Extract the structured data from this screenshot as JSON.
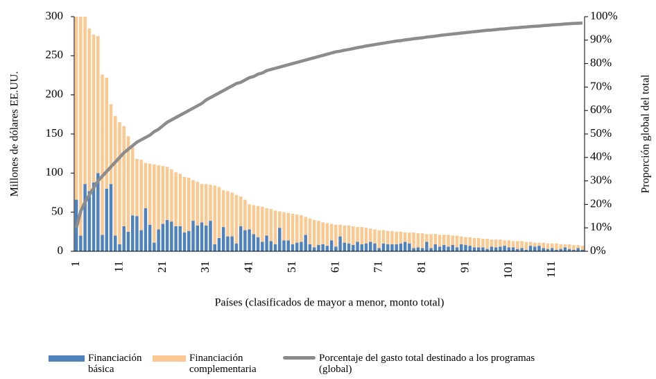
{
  "chart_data": {
    "type": "bar",
    "stacked": true,
    "x_label": "Países (clasificados de mayor a menor, monto total)",
    "y_label": "Millones de dólares EE.UU.",
    "y2_label": "Proporción global del total",
    "categories": [
      "1",
      null,
      null,
      null,
      null,
      null,
      null,
      null,
      null,
      null,
      "11",
      null,
      null,
      null,
      null,
      null,
      null,
      null,
      null,
      null,
      "21",
      null,
      null,
      null,
      null,
      null,
      null,
      null,
      null,
      null,
      "31",
      null,
      null,
      null,
      null,
      null,
      null,
      null,
      null,
      null,
      "41",
      null,
      null,
      null,
      null,
      null,
      null,
      null,
      null,
      null,
      "51",
      null,
      null,
      null,
      null,
      null,
      null,
      null,
      null,
      null,
      "61",
      null,
      null,
      null,
      null,
      null,
      null,
      null,
      null,
      null,
      "71",
      null,
      null,
      null,
      null,
      null,
      null,
      null,
      null,
      null,
      "81",
      null,
      null,
      null,
      null,
      null,
      null,
      null,
      null,
      null,
      "91",
      null,
      null,
      null,
      null,
      null,
      null,
      null,
      null,
      null,
      "101",
      null,
      null,
      null,
      null,
      null,
      null,
      null,
      null,
      null,
      "111",
      null,
      null,
      null,
      null,
      null,
      null,
      null
    ],
    "series": [
      {
        "name": "Financiación básica",
        "color": "#4f81bd",
        "values": [
          66,
          20,
          86,
          77,
          88,
          100,
          21,
          80,
          86,
          20,
          9,
          32,
          25,
          46,
          45,
          27,
          55,
          34,
          11,
          28,
          35,
          40,
          38,
          32,
          32,
          24,
          26,
          39,
          33,
          37,
          33,
          39,
          9,
          17,
          31,
          19,
          19,
          10,
          32,
          27,
          28,
          22,
          18,
          12,
          20,
          13,
          9,
          30,
          14,
          14,
          9,
          11,
          12,
          21,
          9,
          5,
          8,
          9,
          7,
          14,
          6,
          19,
          11,
          10,
          8,
          12,
          9,
          10,
          12,
          10,
          4,
          10,
          9,
          9,
          9,
          10,
          12,
          10,
          4,
          5,
          4,
          12,
          4,
          9,
          6,
          8,
          6,
          8,
          5,
          9,
          8,
          7,
          5,
          5,
          5,
          3,
          6,
          5,
          6,
          7,
          5,
          5,
          3,
          4,
          2,
          7,
          6,
          7,
          4,
          3,
          4,
          2,
          3,
          5,
          3,
          2,
          4,
          2
        ]
      },
      {
        "name": "Financiación complementaria",
        "color": "#fac891",
        "values": [
          254,
          310,
          224,
          208,
          189,
          175,
          205,
          142,
          102,
          153,
          156,
          128,
          122,
          87,
          73,
          90,
          58,
          78,
          100,
          82,
          74,
          68,
          67,
          69,
          67,
          71,
          68,
          52,
          56,
          49,
          53,
          46,
          75,
          65,
          47,
          58,
          56,
          62,
          38,
          39,
          32,
          37,
          40,
          45,
          35,
          41,
          43,
          21,
          36,
          35,
          39,
          36,
          34,
          23,
          33,
          35,
          31,
          28,
          29,
          21,
          28,
          15,
          22,
          23,
          24,
          19,
          22,
          20,
          17,
          18,
          23,
          17,
          17,
          17,
          16,
          15,
          12,
          14,
          20,
          18,
          19,
          10,
          18,
          13,
          15,
          13,
          15,
          12,
          15,
          10,
          10,
          11,
          12,
          12,
          11,
          13,
          9,
          10,
          9,
          7,
          9,
          8,
          10,
          9,
          10,
          5,
          5,
          4,
          7,
          7,
          6,
          8,
          6,
          4,
          6,
          6,
          4,
          5
        ]
      },
      {
        "name": "Porcentaje del gasto total destinado a los programas (global)",
        "color": "#8c8c8c",
        "type": "line",
        "axis": "y2",
        "values": [
          10,
          17,
          21,
          24,
          27,
          30,
          32,
          34,
          36,
          38,
          40,
          42,
          43.5,
          45,
          46.5,
          47.5,
          48.5,
          49.5,
          51,
          52,
          53.5,
          55,
          56,
          57,
          58,
          59,
          60,
          61,
          62,
          63,
          64.5,
          65.5,
          66.5,
          67.5,
          68.5,
          69.5,
          70.5,
          71.5,
          72,
          73,
          74,
          74.5,
          75.5,
          76,
          77,
          77.5,
          78,
          78.5,
          79,
          79.5,
          80,
          80.5,
          81,
          81.5,
          82,
          82.5,
          83,
          83.5,
          84,
          84.5,
          85,
          85.3,
          85.7,
          86,
          86.4,
          86.8,
          87.1,
          87.5,
          87.8,
          88.1,
          88.4,
          88.7,
          89,
          89.3,
          89.6,
          89.8,
          90.1,
          90.3,
          90.6,
          90.8,
          91,
          91.3,
          91.5,
          91.7,
          92,
          92.2,
          92.4,
          92.6,
          92.8,
          93,
          93.2,
          93.4,
          93.6,
          93.8,
          94,
          94.2,
          94.3,
          94.5,
          94.7,
          94.8,
          95,
          95.2,
          95.3,
          95.5,
          95.6,
          95.8,
          95.9,
          96,
          96.2,
          96.3,
          96.5,
          96.6,
          96.7,
          96.9,
          97,
          97.1,
          97.2,
          97.3
        ]
      }
    ],
    "ylim": [
      0,
      300
    ],
    "yticks": [
      0,
      50,
      100,
      150,
      200,
      250,
      300
    ],
    "y2lim": [
      0,
      100
    ],
    "y2ticks": [
      {
        "value": 0,
        "label": "0%"
      },
      {
        "value": 10,
        "label": "10%"
      },
      {
        "value": 20,
        "label": "20%"
      },
      {
        "value": 30,
        "label": "30%"
      },
      {
        "value": 40,
        "label": "40%"
      },
      {
        "value": 50,
        "label": "50%"
      },
      {
        "value": 60,
        "label": "60%"
      },
      {
        "value": 70,
        "label": "70%"
      },
      {
        "value": 80,
        "label": "80%"
      },
      {
        "value": 90,
        "label": "90%"
      },
      {
        "value": 100,
        "label": "100%"
      }
    ],
    "grid": false,
    "legend": "bottom"
  }
}
